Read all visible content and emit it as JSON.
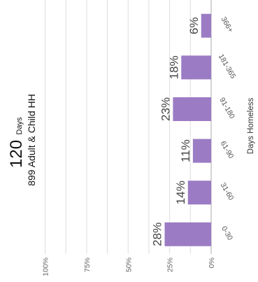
{
  "header": {
    "days_value": "120",
    "days_unit": "Days",
    "subtitle": "899 Adult & Child HH"
  },
  "chart_data": {
    "type": "bar",
    "orientation": "horizontal",
    "xlabel": "Days Homeless",
    "ylabel": "",
    "categories": [
      "0-30",
      "31-60",
      "61-90",
      "91-180",
      "181-365",
      "366+"
    ],
    "values": [
      28,
      14,
      11,
      23,
      18,
      6
    ],
    "value_labels": [
      "28%",
      "14%",
      "11%",
      "23%",
      "18%",
      "6%"
    ],
    "ylim": [
      0,
      100
    ],
    "ticks": [
      0,
      25,
      50,
      75,
      100
    ],
    "tick_labels": [
      "0%",
      "25%",
      "50%",
      "75%",
      "100%"
    ],
    "grid": true,
    "bar_color": "#9b7cc4",
    "grid_color": "#dddddd"
  }
}
